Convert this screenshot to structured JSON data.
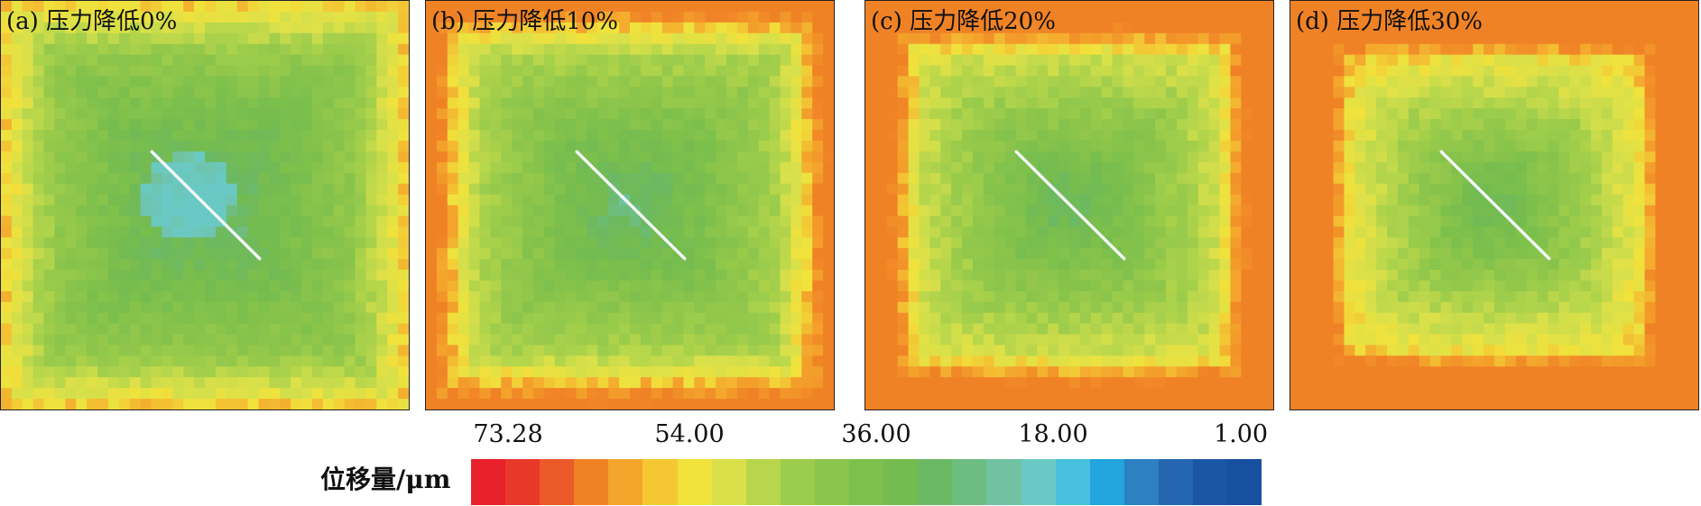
{
  "panels": [
    {
      "label": "(a) 压力降低0%",
      "level": 0.0
    },
    {
      "label": "(b) 压力降低10%",
      "level": 0.33
    },
    {
      "label": "(c) 压力降低20%",
      "level": 0.66
    },
    {
      "label": "(d) 压力降低30%",
      "level": 1.0
    }
  ],
  "legend": {
    "title": "位移量/μm",
    "ticks": [
      "73.28",
      "54.00",
      "36.00",
      "18.00",
      "1.00"
    ],
    "colors": [
      "#e8212a",
      "#e8382a",
      "#ec5a29",
      "#f08226",
      "#f4a52c",
      "#f5c833",
      "#f1e23c",
      "#d9e04a",
      "#b7d64b",
      "#9ccc4b",
      "#8cc54b",
      "#7ec04c",
      "#74bb50",
      "#6cb963",
      "#6dbd80",
      "#70c2a2",
      "#6ac9c4",
      "#48c0de",
      "#23a5dd",
      "#2d80c2",
      "#2466b0",
      "#1a56a4",
      "#16509e"
    ]
  },
  "colors": {
    "crack": "#f2f7f4",
    "border": "#222222"
  }
}
